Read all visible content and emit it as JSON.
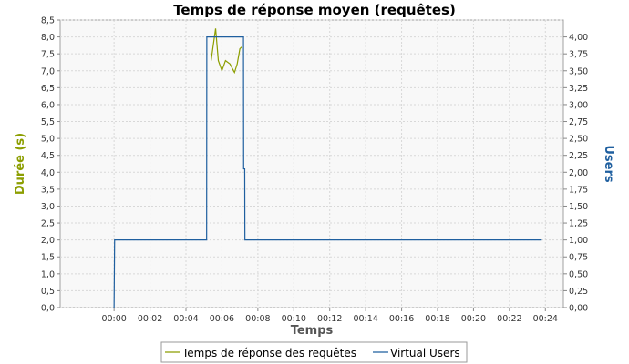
{
  "chart_data": {
    "type": "line",
    "title": "Temps de réponse moyen (requêtes)",
    "xlabel": "Temps",
    "ylabel_left": "Durée (s)",
    "ylabel_right": "Users",
    "xlim_min": [
      -3,
      25
    ],
    "x_ticks": [
      "00:00",
      "00:02",
      "00:04",
      "00:06",
      "00:08",
      "00:10",
      "00:12",
      "00:14",
      "00:16",
      "00:18",
      "00:20",
      "00:22",
      "00:24"
    ],
    "ylim_left": [
      0,
      8.5
    ],
    "yticks_left": [
      "0,0",
      "0,5",
      "1,0",
      "1,5",
      "2,0",
      "2,5",
      "3,0",
      "3,5",
      "4,0",
      "4,5",
      "5,0",
      "5,5",
      "6,0",
      "6,5",
      "7,0",
      "7,5",
      "8,0",
      "8,5"
    ],
    "ylim_right": [
      0,
      4.25
    ],
    "yticks_right": [
      "0,00",
      "0,25",
      "0,50",
      "0,75",
      "1,00",
      "1,25",
      "1,50",
      "1,75",
      "2,00",
      "2,25",
      "2,50",
      "2,75",
      "3,00",
      "3,25",
      "3,50",
      "3,75",
      "4,00"
    ],
    "grid": true,
    "legend_position": "bottom",
    "series": [
      {
        "name": "Temps de réponse des requêtes",
        "axis": "left",
        "color": "#8c9e00",
        "x_min": [
          5.4,
          5.65,
          5.8,
          6.0,
          6.2,
          6.45,
          6.7,
          6.85,
          7.0,
          7.1
        ],
        "y": [
          7.3,
          8.25,
          7.3,
          7.0,
          7.3,
          7.2,
          6.95,
          7.2,
          7.65,
          7.7
        ]
      },
      {
        "name": "Virtual Users",
        "axis": "right",
        "color": "#1f5f9f",
        "x_min": [
          0.0,
          0.03,
          5.15,
          5.16,
          7.2,
          7.21,
          7.27,
          7.28,
          23.8
        ],
        "y": [
          0.0,
          1.0,
          1.0,
          4.0,
          4.0,
          2.05,
          2.05,
          1.0,
          1.0
        ]
      }
    ]
  }
}
